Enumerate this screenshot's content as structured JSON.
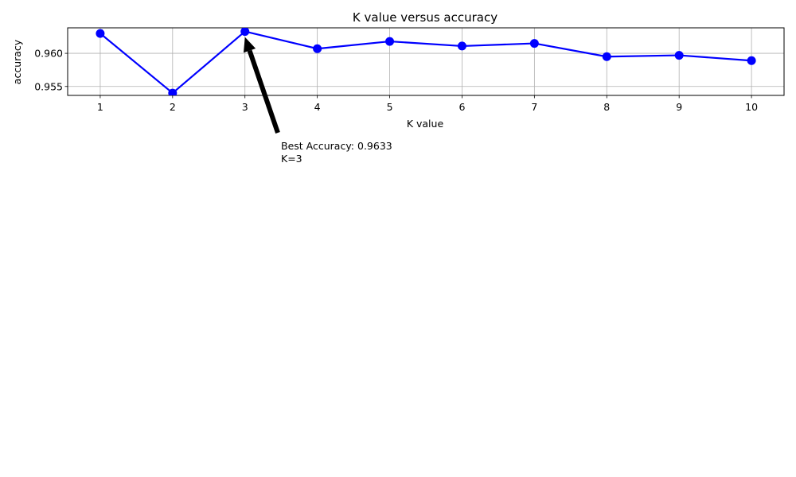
{
  "chart_data": {
    "type": "line",
    "title": "K value versus accuracy",
    "xlabel": "K value",
    "ylabel": "accuracy",
    "x": [
      1,
      2,
      3,
      4,
      5,
      6,
      7,
      8,
      9,
      10
    ],
    "x_tick_labels": [
      "1",
      "2",
      "3",
      "4",
      "5",
      "6",
      "7",
      "8",
      "9",
      "10"
    ],
    "series": [
      {
        "color": "#0000ff",
        "marker": "circle",
        "values": [
          0.963,
          0.954,
          0.9633,
          0.9607,
          0.9618,
          0.9611,
          0.9615,
          0.9595,
          0.9597,
          0.9589
        ]
      }
    ],
    "y_ticks": [
      0.955,
      0.96
    ],
    "y_tick_labels": [
      "0.955",
      "0.960"
    ],
    "xlim": [
      0.55,
      10.45
    ],
    "ylim": [
      0.95365,
      0.96385
    ],
    "grid": true,
    "annotation": {
      "line1": "Best Accuracy: 0.9633",
      "line2": "K=3",
      "target_x": 3,
      "target_y": 0.9633,
      "arrow_color": "#000000"
    }
  }
}
